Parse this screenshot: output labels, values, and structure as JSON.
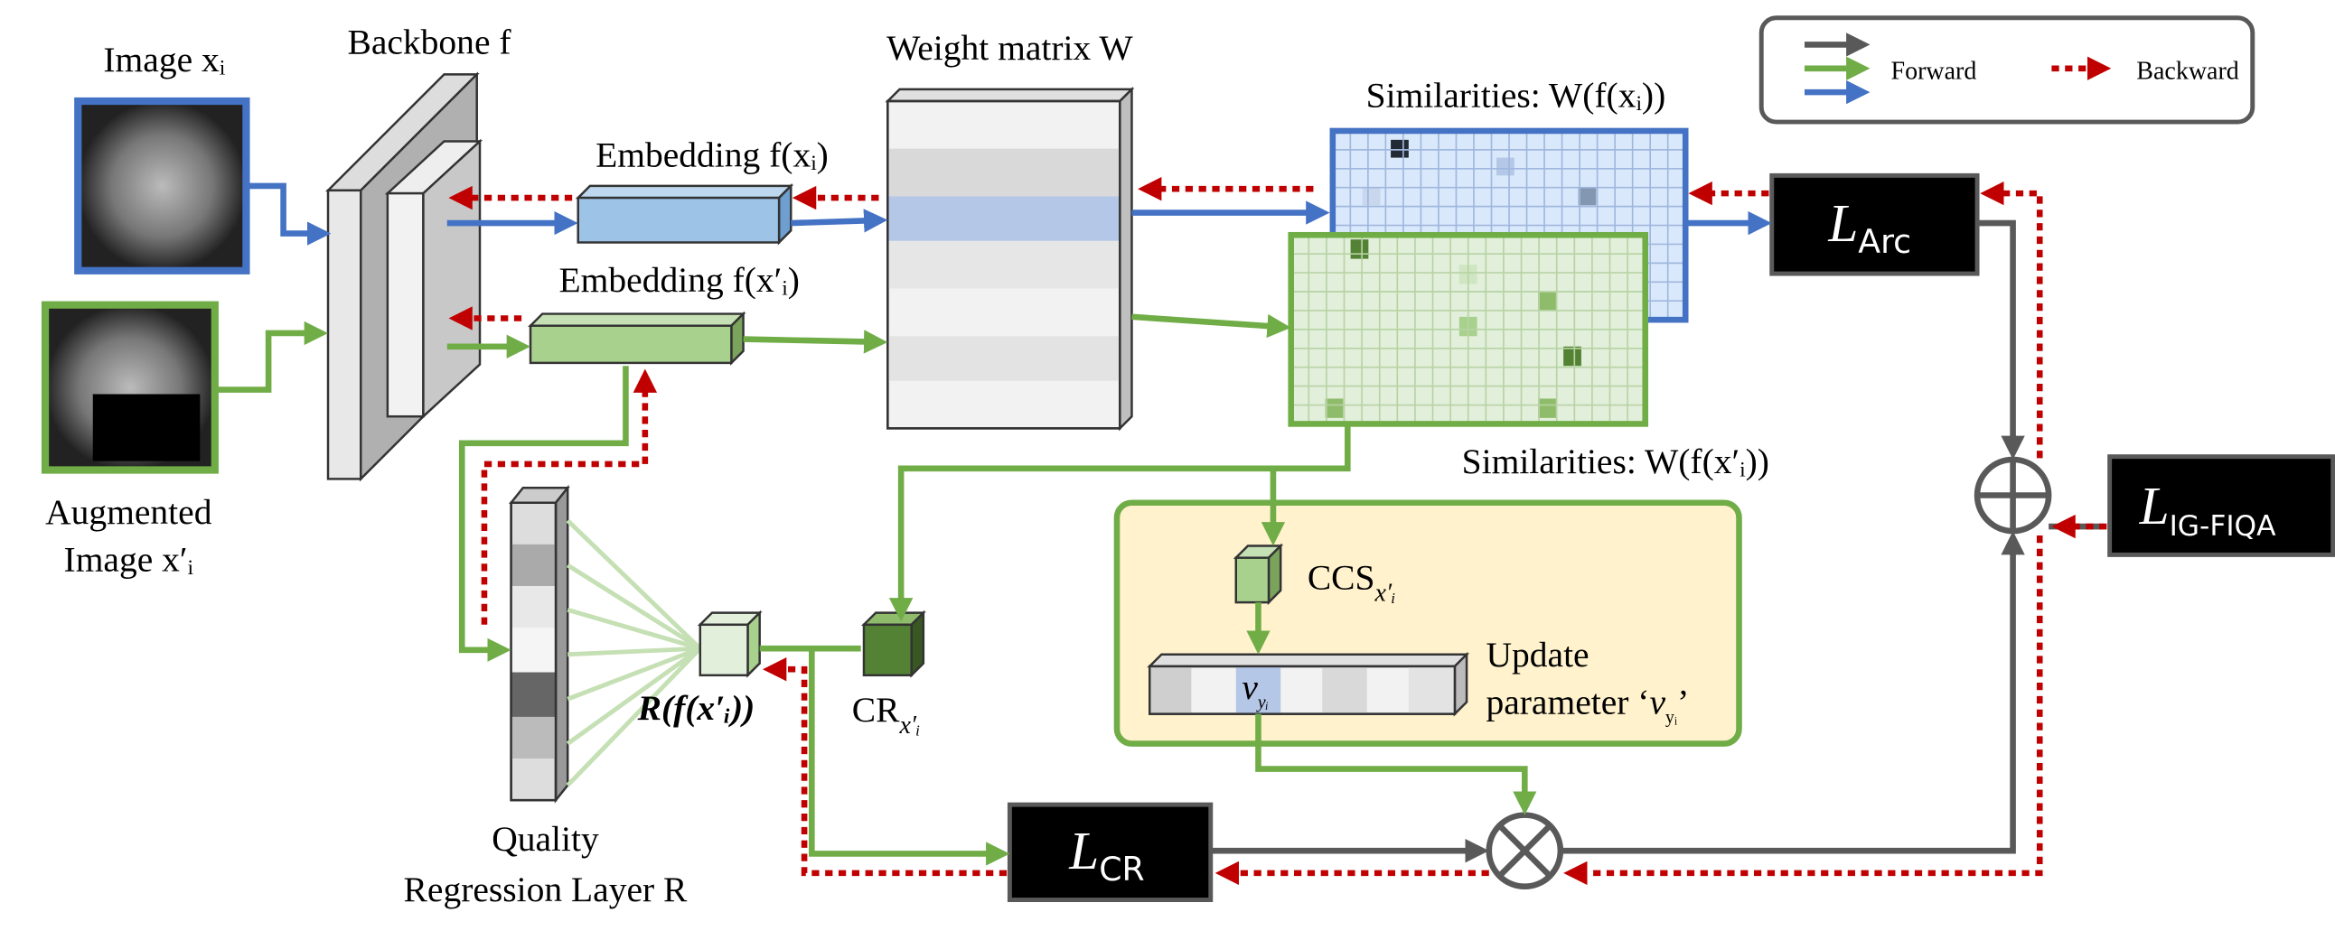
{
  "legend": {
    "forward": "Forward",
    "backward": "Backward"
  },
  "inputs": {
    "image": "Image xᵢ",
    "augmented_1": "Augmented",
    "augmented_2": "Image x′ᵢ"
  },
  "backbone": "Backbone f",
  "embedding_1": "Embedding f(xᵢ)",
  "embedding_2": "Embedding f(x′ᵢ)",
  "weight_matrix": "Weight matrix W",
  "similarities_1": "Similarities: W(f(xᵢ))",
  "similarities_2": "Similarities: W(f(x′ᵢ))",
  "losses": {
    "arc": {
      "main": "L",
      "sub": "Arc"
    },
    "total": {
      "main": "L",
      "sub": "IG-FIQA"
    },
    "cr": {
      "main": "L",
      "sub": "CR"
    }
  },
  "ccs": {
    "main": "CCS",
    "sub": "x′ᵢ"
  },
  "cr": {
    "main": "CR",
    "sub": "x′ᵢ"
  },
  "update": {
    "line_1": "Update",
    "line_2": "parameter ‘",
    "var": "v",
    "sub": "yᵢ",
    "close": "’"
  },
  "vector_label": {
    "var": "v",
    "sub": "yᵢ"
  },
  "regression_output": "R(f(x′ᵢ))",
  "quality": {
    "line_1": "Quality",
    "line_2": "Regression Layer R"
  }
}
